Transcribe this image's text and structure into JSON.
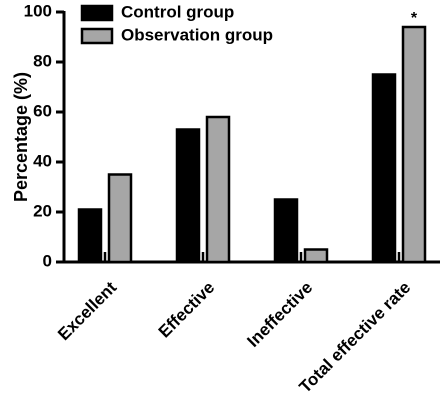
{
  "chart_data": {
    "type": "bar",
    "title": "",
    "xlabel": "",
    "ylabel": "Percentage (%)",
    "ylim": [
      0,
      100
    ],
    "yticks": [
      0,
      20,
      40,
      60,
      80,
      100
    ],
    "grid": false,
    "legend_position": "top-left",
    "categories": [
      "Excellent",
      "Effective",
      "Ineffective",
      "Total effective rate"
    ],
    "series": [
      {
        "name": "Control group",
        "color": "#000000",
        "values": [
          21,
          53,
          25,
          75
        ]
      },
      {
        "name": "Observation group",
        "color": "#a6a6a6",
        "values": [
          35,
          58,
          5,
          94
        ]
      }
    ],
    "annotations": [
      {
        "category": "Total effective rate",
        "series": "Observation group",
        "text": "*"
      }
    ]
  }
}
